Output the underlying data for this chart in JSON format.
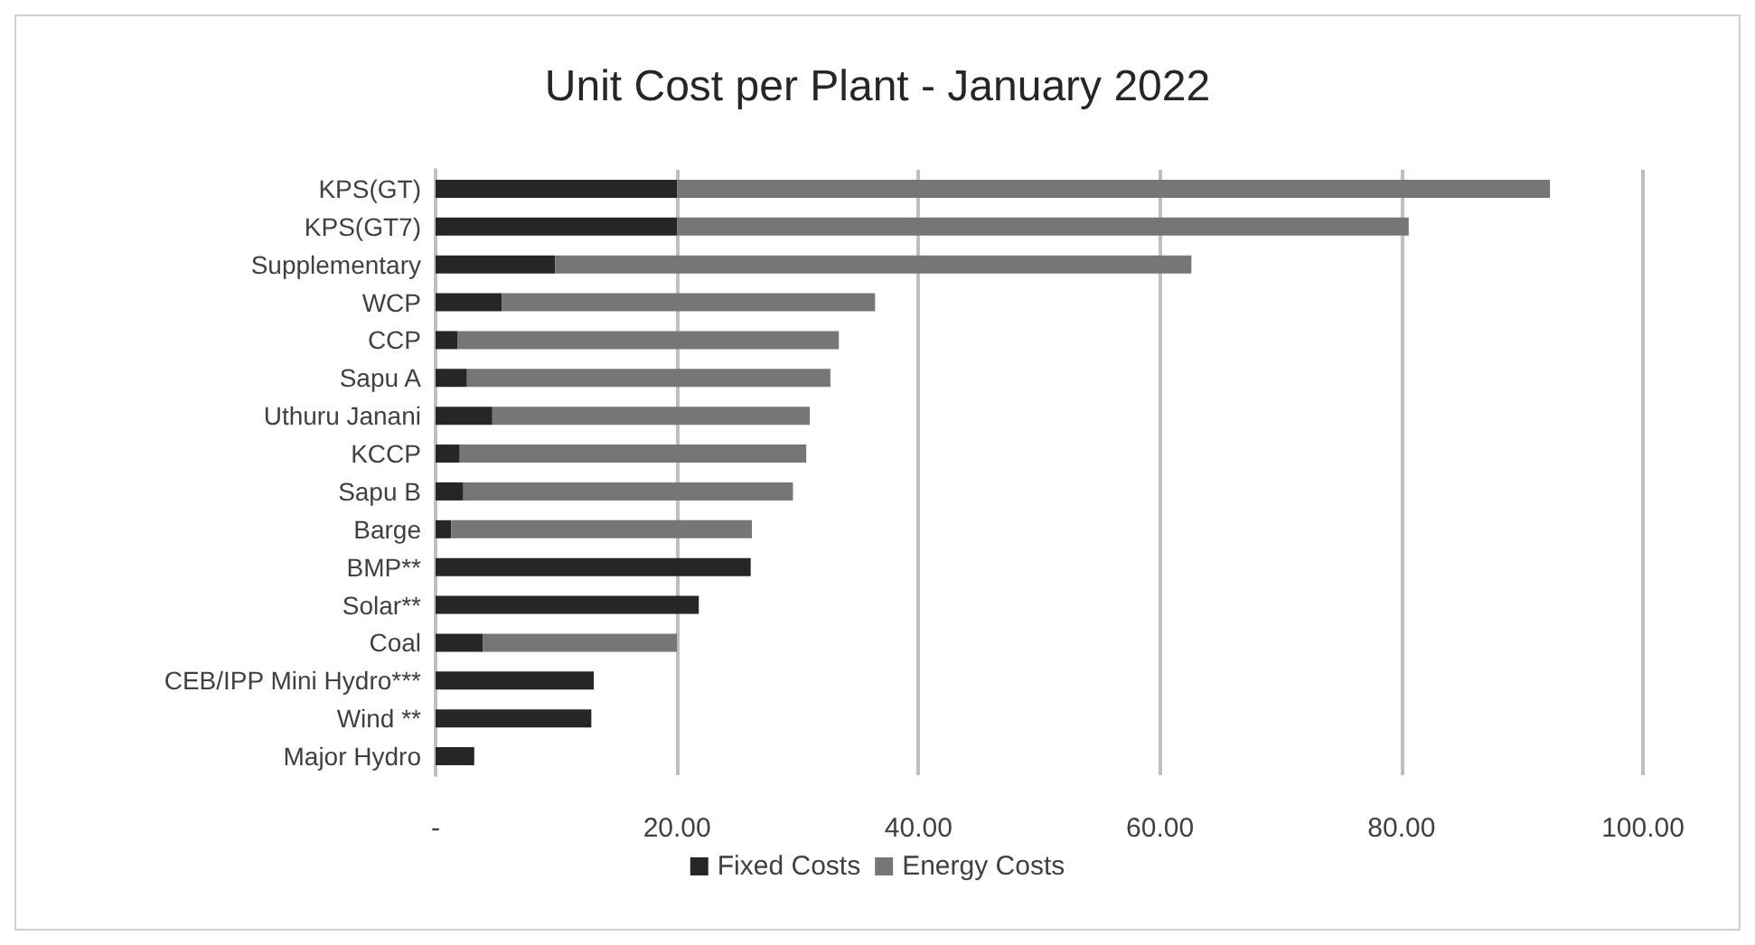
{
  "chart_data": {
    "type": "bar",
    "orientation": "horizontal",
    "stacked": true,
    "title": "Unit Cost per Plant - January 2022",
    "categories": [
      "KPS(GT)",
      "KPS(GT7)",
      "Supplementary",
      "WCP",
      "CCP",
      "Sapu A",
      "Uthuru Janani",
      "KCCP",
      "Sapu B",
      "Barge",
      "BMP**",
      "Solar**",
      "Coal",
      "CEB/IPP Mini Hydro***",
      "Wind **",
      "Major Hydro"
    ],
    "series": [
      {
        "name": "Fixed Costs",
        "color": "#262626",
        "values": [
          20,
          20,
          9.9,
          5.5,
          1.8,
          2.6,
          4.7,
          2.0,
          2.3,
          1.3,
          26.1,
          21.8,
          3.9,
          13.1,
          12.9,
          3.2
        ]
      },
      {
        "name": "Energy Costs",
        "color": "#767676",
        "values": [
          72.3,
          60.6,
          52.7,
          30.9,
          31.6,
          30.1,
          26.3,
          28.7,
          27.3,
          24.9,
          null,
          null,
          16.1,
          null,
          null,
          null
        ]
      }
    ],
    "xlim": [
      0,
      100
    ],
    "xticks": [
      {
        "value": 0,
        "label": "-"
      },
      {
        "value": 20,
        "label": "20.00"
      },
      {
        "value": 40,
        "label": "40.00"
      },
      {
        "value": 60,
        "label": "60.00"
      },
      {
        "value": 80,
        "label": "80.00"
      },
      {
        "value": 100,
        "label": "100.00"
      }
    ],
    "grid": "x",
    "legend": "bottom"
  }
}
